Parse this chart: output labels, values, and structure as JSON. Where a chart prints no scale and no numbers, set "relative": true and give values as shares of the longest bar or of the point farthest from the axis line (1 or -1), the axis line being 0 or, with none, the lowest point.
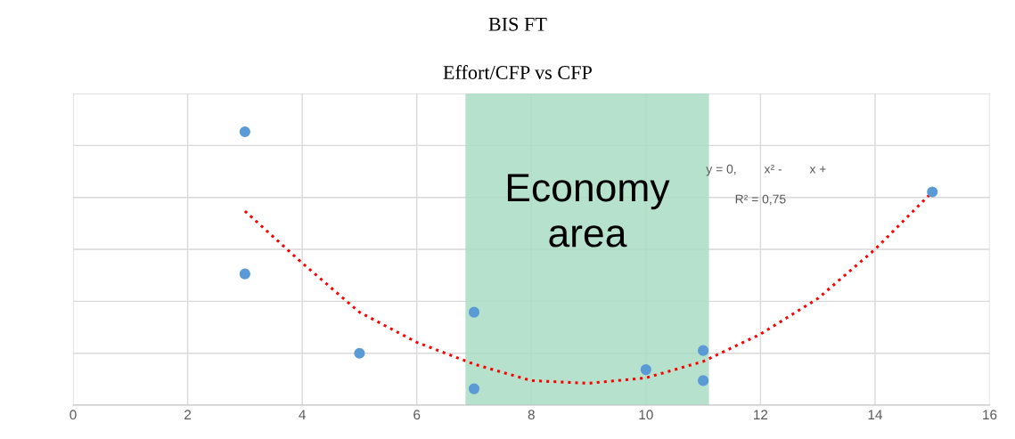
{
  "chart_data": {
    "type": "scatter",
    "title": "BIS FT",
    "subtitle": "Effort/CFP vs CFP",
    "relative": true,
    "xlim": [
      0,
      16
    ],
    "xticks": [
      0,
      2,
      4,
      6,
      8,
      10,
      12,
      14,
      16
    ],
    "grid": true,
    "series": [
      {
        "marker": "circle",
        "color": "#5b9bd5",
        "x": [
          3,
          3,
          5,
          7,
          7,
          10,
          11,
          11,
          15
        ],
        "values": [
          1,
          0.48,
          0.19,
          0.34,
          0.06,
          0.13,
          0.2,
          0.09,
          0.78
        ]
      },
      {
        "type": "line",
        "marker": "none",
        "color": "#ff0000",
        "line_style": "dotted",
        "x": [
          3,
          4,
          5,
          6,
          7,
          8,
          9,
          10,
          11,
          12,
          13,
          14,
          15
        ],
        "values": [
          0.71,
          0.52,
          0.34,
          0.23,
          0.15,
          0.09,
          0.08,
          0.1,
          0.16,
          0.26,
          0.39,
          0.57,
          0.78
        ]
      }
    ],
    "bands": [
      {
        "axis": "x",
        "from": 6.85,
        "to": 11.1,
        "label": "Economy area",
        "color": "#a9dcc3"
      }
    ],
    "annotations": [
      "y = 0,        x² -        x +",
      "R² = 0,75"
    ]
  }
}
